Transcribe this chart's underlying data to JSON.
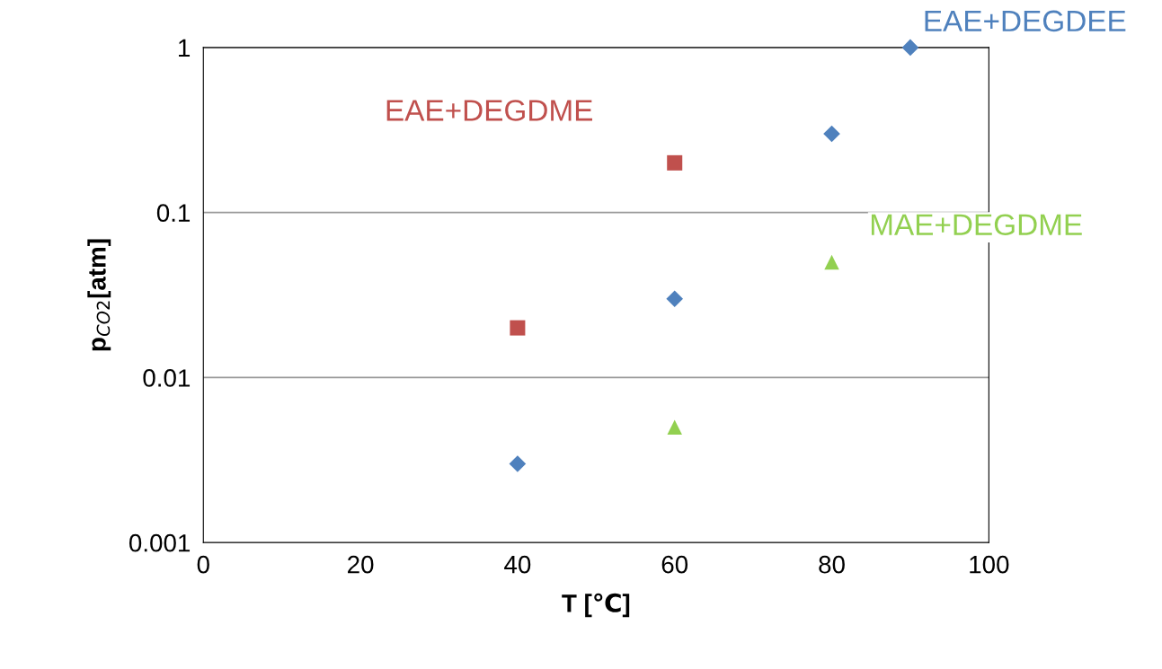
{
  "chart_data": {
    "type": "scatter",
    "xlabel": "T [℃]",
    "ylabel": "p$_{CO2}$[atm]",
    "log": "y",
    "xlim": [
      0,
      100
    ],
    "xticks": [
      0,
      20,
      40,
      60,
      80,
      100
    ],
    "ylim": [
      0.001,
      1
    ],
    "yticks": [
      {
        "value": 0.001,
        "label": "0.001"
      },
      {
        "value": 0.01,
        "label": "0.01"
      },
      {
        "value": 0.1,
        "label": "0.1"
      },
      {
        "value": 1,
        "label": "1"
      }
    ],
    "grid": "y",
    "legend": false,
    "series": [
      {
        "name": "EAE+DEGDEE",
        "color": "#4f81bd",
        "marker": "diamond",
        "x": [
          40,
          60,
          80,
          90
        ],
        "values": [
          0.003,
          0.03,
          0.3,
          1
        ]
      },
      {
        "name": "EAE+DEGDME",
        "color": "#c0504d",
        "marker": "square",
        "x": [
          40,
          60
        ],
        "values": [
          0.02,
          0.2
        ]
      },
      {
        "name": "MAE+DEGDME",
        "color": "#92d050",
        "marker": "triangle",
        "x": [
          60,
          80
        ],
        "values": [
          0.005,
          0.05
        ]
      }
    ]
  }
}
